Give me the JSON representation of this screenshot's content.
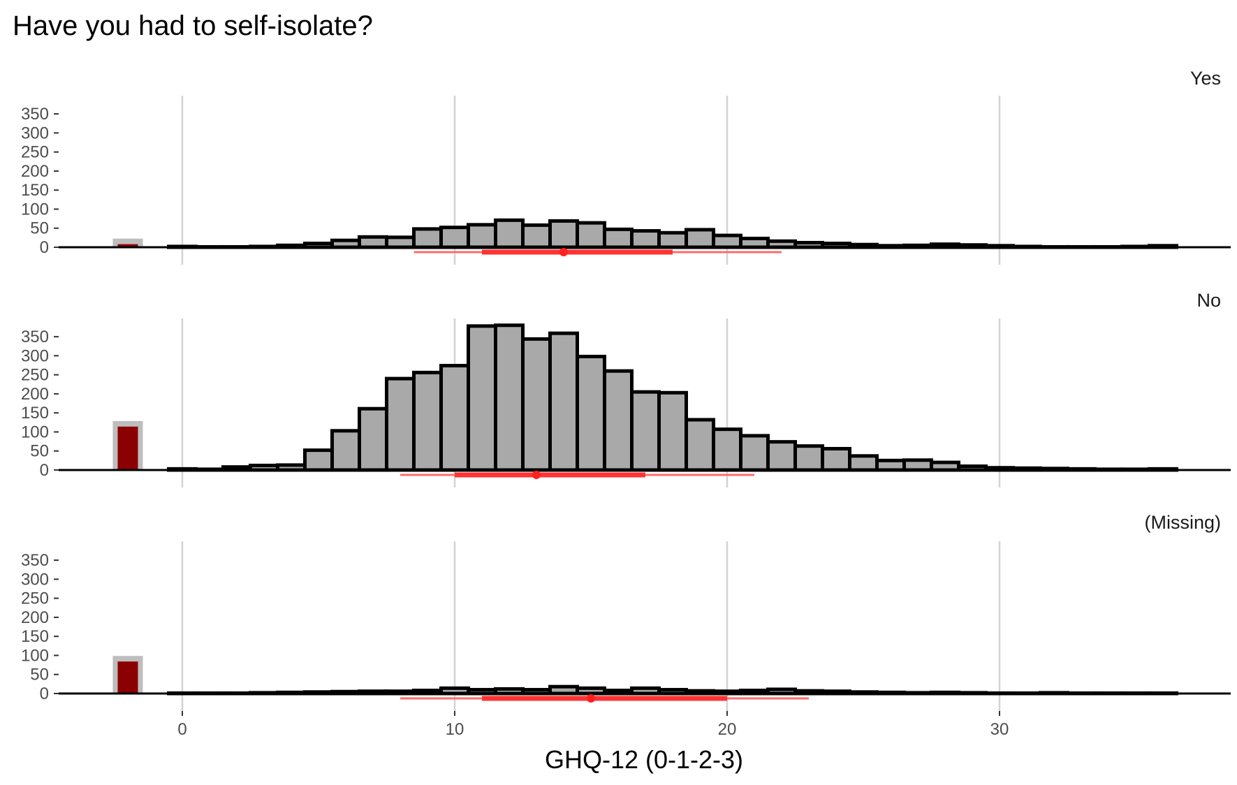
{
  "chart_data": {
    "type": "bar",
    "title": "Have you had to self-isolate?",
    "xlabel": "GHQ-12 (0-1-2-3)",
    "ylabel": "",
    "xlim": [
      -4.5,
      38
    ],
    "ylim": [
      0,
      380
    ],
    "x_ticks": [
      0,
      10,
      20,
      30
    ],
    "y_ticks": [
      0,
      50,
      100,
      150,
      200,
      250,
      300,
      350
    ],
    "grid": "vertical major lines only",
    "missing_bar_x": -2,
    "bins": [
      0,
      1,
      2,
      3,
      4,
      5,
      6,
      7,
      8,
      9,
      10,
      11,
      12,
      13,
      14,
      15,
      16,
      17,
      18,
      19,
      20,
      21,
      22,
      23,
      24,
      25,
      26,
      27,
      28,
      29,
      30,
      31,
      32,
      33,
      34,
      35,
      36
    ],
    "panels": [
      {
        "strip": "Yes",
        "missing_count": 8,
        "counts": [
          2,
          1,
          1,
          2,
          5,
          10,
          18,
          27,
          26,
          48,
          52,
          59,
          71,
          58,
          69,
          64,
          47,
          43,
          38,
          46,
          31,
          23,
          16,
          12,
          10,
          7,
          4,
          5,
          8,
          6,
          4,
          2,
          1,
          1,
          1,
          2,
          4
        ],
        "summary": {
          "median": 14,
          "q25": 11,
          "q75": 18,
          "min": 8.5,
          "max": 22
        }
      },
      {
        "strip": "No",
        "missing_count": 114,
        "counts": [
          3,
          2,
          8,
          12,
          13,
          52,
          103,
          161,
          240,
          256,
          274,
          378,
          380,
          344,
          359,
          298,
          260,
          205,
          203,
          132,
          107,
          90,
          74,
          63,
          56,
          37,
          25,
          26,
          20,
          10,
          6,
          5,
          4,
          3,
          2,
          2,
          3
        ],
        "summary": {
          "median": 13,
          "q25": 10,
          "q75": 17,
          "min": 8,
          "max": 21
        }
      },
      {
        "strip": "(Missing)",
        "missing_count": 84,
        "counts": [
          1,
          1,
          1,
          2,
          3,
          4,
          5,
          6,
          6,
          8,
          14,
          10,
          12,
          10,
          18,
          14,
          8,
          14,
          10,
          7,
          6,
          8,
          11,
          7,
          6,
          4,
          3,
          2,
          3,
          2,
          1,
          1,
          2,
          1,
          1,
          1,
          1
        ],
        "summary": {
          "median": 15,
          "q25": 11,
          "q75": 20,
          "min": 8,
          "max": 23
        }
      }
    ]
  }
}
